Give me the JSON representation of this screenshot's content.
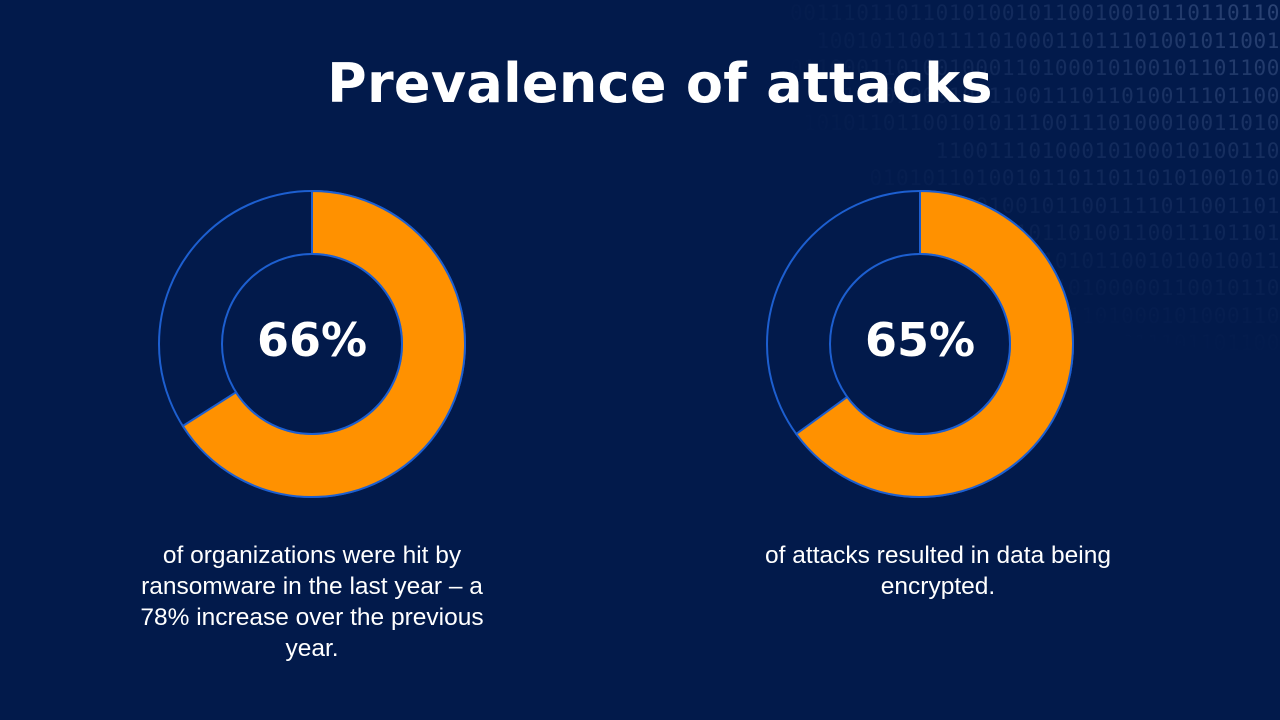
{
  "title": "Prevalence of attacks",
  "colors": {
    "background": "#021a4b",
    "accent_orange": "#ff9100",
    "ring_stroke": "#1d5fd0",
    "text": "#ffffff"
  },
  "background_binary": [
    "0011101101101010010110010010110110110",
    "10010110011110100011011101001011001",
    "0110001101001000110100010100101101100",
    "101010001001100111011010011101100",
    "0101011011001010111001110100010011010",
    "11001110100010100010100110",
    "0101011010010110110110101001010",
    "1001011101001011001111011001101",
    "0110010110100110011101101",
    "01101011001010010011",
    "0110100000110010110",
    "1001101000101000110",
    "01011101101100",
    "010110101101100101",
    "11001011010",
    "0111011010",
    "01000101",
    "1010110"
  ],
  "chart_data": [
    {
      "type": "pie",
      "style": "donut",
      "value_label": "66%",
      "values": [
        66,
        34
      ],
      "caption": "of organizations were hit by ransomware in the last year – a 78% increase over the previous year."
    },
    {
      "type": "pie",
      "style": "donut",
      "value_label": "65%",
      "values": [
        65,
        35
      ],
      "caption": "of attacks resulted in data being encrypted."
    }
  ]
}
